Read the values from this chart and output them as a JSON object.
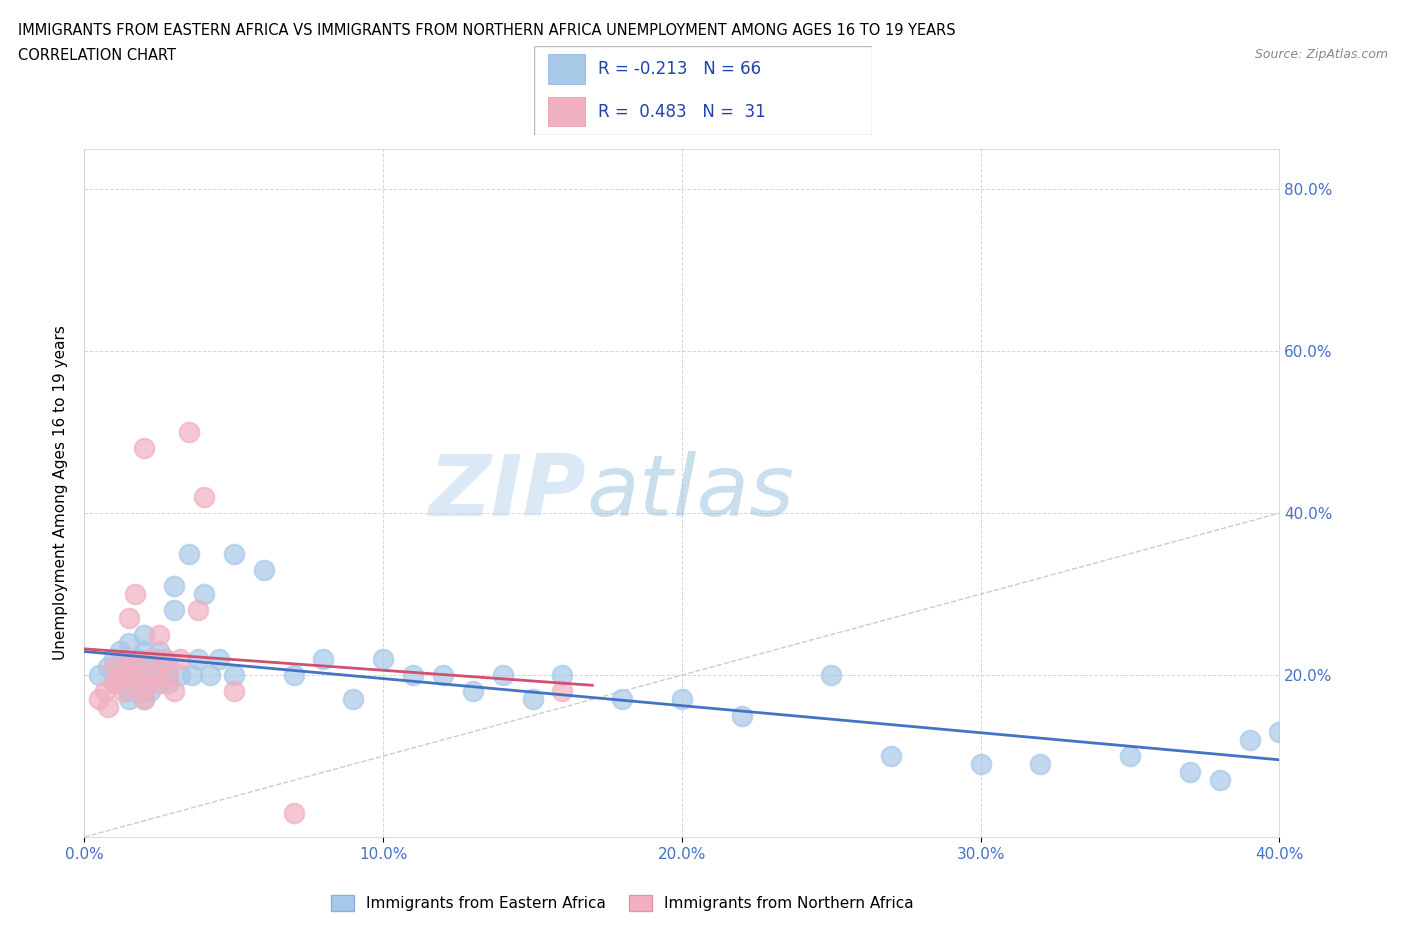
{
  "title_line1": "IMMIGRANTS FROM EASTERN AFRICA VS IMMIGRANTS FROM NORTHERN AFRICA UNEMPLOYMENT AMONG AGES 16 TO 19 YEARS",
  "title_line2": "CORRELATION CHART",
  "source_text": "Source: ZipAtlas.com",
  "xlim": [
    0.0,
    0.4
  ],
  "ylim": [
    0.0,
    0.85
  ],
  "color_eastern": "#a8c8e8",
  "color_northern": "#f0b0c0",
  "color_eastern_line": "#4472c4",
  "color_northern_line": "#d05070",
  "watermark_zip": "ZIP",
  "watermark_atlas": "atlas",
  "eastern_x": [
    0.005,
    0.008,
    0.01,
    0.01,
    0.012,
    0.012,
    0.015,
    0.015,
    0.015,
    0.015,
    0.015,
    0.017,
    0.018,
    0.018,
    0.019,
    0.02,
    0.02,
    0.02,
    0.02,
    0.02,
    0.02,
    0.022,
    0.022,
    0.023,
    0.024,
    0.025,
    0.025,
    0.025,
    0.026,
    0.027,
    0.028,
    0.028,
    0.03,
    0.03,
    0.032,
    0.035,
    0.036,
    0.038,
    0.04,
    0.042,
    0.045,
    0.05,
    0.05,
    0.06,
    0.07,
    0.08,
    0.09,
    0.1,
    0.11,
    0.12,
    0.13,
    0.14,
    0.15,
    0.16,
    0.18,
    0.2,
    0.22,
    0.25,
    0.27,
    0.3,
    0.32,
    0.35,
    0.37,
    0.38,
    0.39,
    0.4
  ],
  "eastern_y": [
    0.2,
    0.21,
    0.19,
    0.22,
    0.2,
    0.23,
    0.17,
    0.18,
    0.2,
    0.22,
    0.24,
    0.21,
    0.19,
    0.22,
    0.2,
    0.17,
    0.18,
    0.19,
    0.21,
    0.23,
    0.25,
    0.18,
    0.21,
    0.2,
    0.22,
    0.19,
    0.21,
    0.23,
    0.2,
    0.22,
    0.19,
    0.21,
    0.28,
    0.31,
    0.2,
    0.35,
    0.2,
    0.22,
    0.3,
    0.2,
    0.22,
    0.35,
    0.2,
    0.33,
    0.2,
    0.22,
    0.17,
    0.22,
    0.2,
    0.2,
    0.18,
    0.2,
    0.17,
    0.2,
    0.17,
    0.17,
    0.15,
    0.2,
    0.1,
    0.09,
    0.09,
    0.1,
    0.08,
    0.07,
    0.12,
    0.13
  ],
  "northern_x": [
    0.005,
    0.007,
    0.008,
    0.01,
    0.01,
    0.012,
    0.013,
    0.015,
    0.015,
    0.015,
    0.016,
    0.017,
    0.018,
    0.019,
    0.02,
    0.02,
    0.02,
    0.022,
    0.024,
    0.025,
    0.025,
    0.027,
    0.028,
    0.03,
    0.032,
    0.035,
    0.038,
    0.04,
    0.05,
    0.07,
    0.16
  ],
  "northern_y": [
    0.17,
    0.18,
    0.16,
    0.19,
    0.21,
    0.2,
    0.18,
    0.2,
    0.22,
    0.27,
    0.21,
    0.3,
    0.2,
    0.18,
    0.17,
    0.19,
    0.48,
    0.22,
    0.2,
    0.19,
    0.25,
    0.22,
    0.2,
    0.18,
    0.22,
    0.5,
    0.28,
    0.42,
    0.18,
    0.03,
    0.18
  ]
}
